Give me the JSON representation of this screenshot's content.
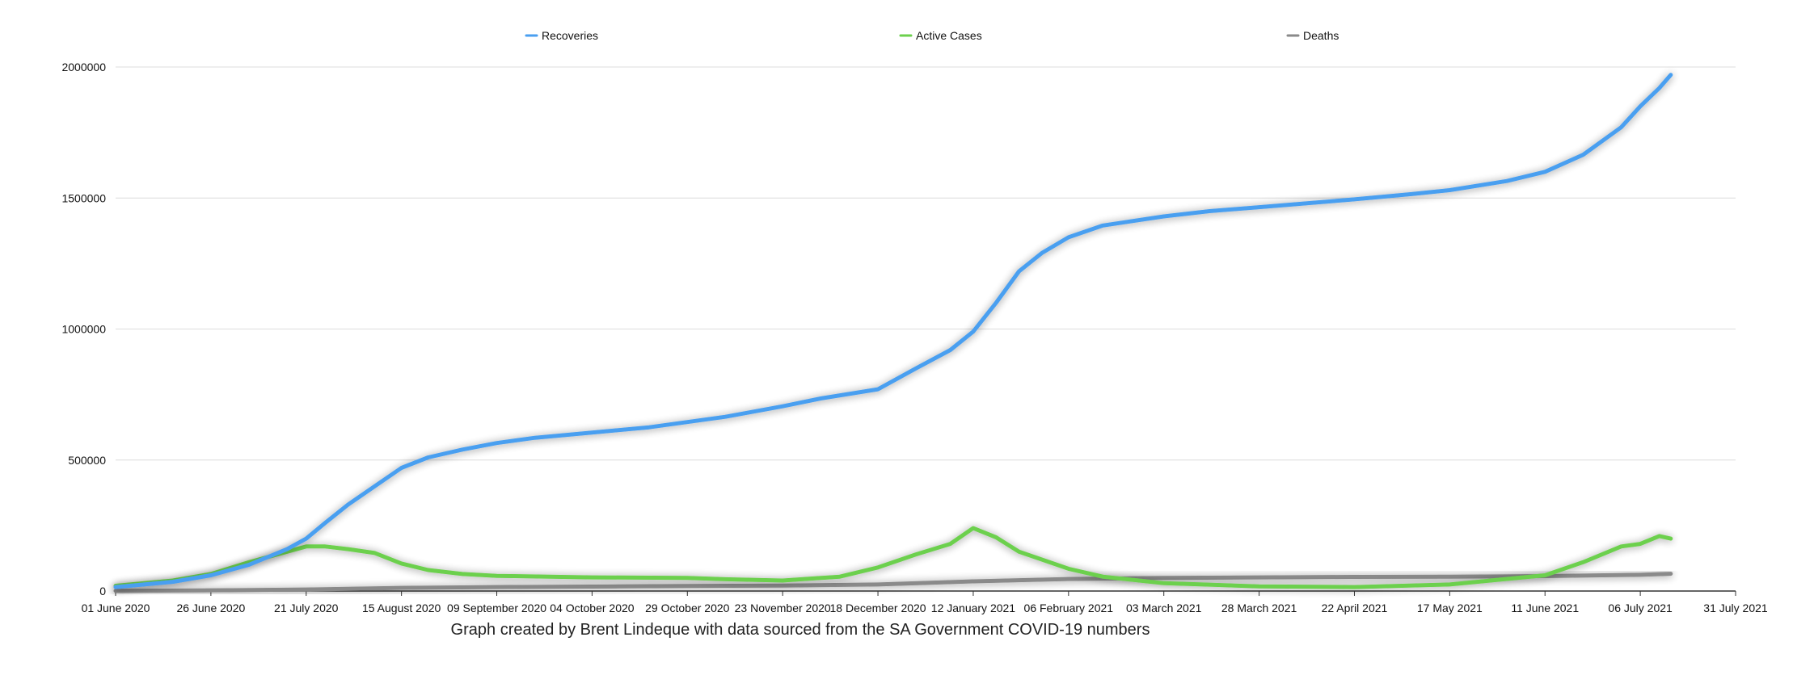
{
  "chart_data": {
    "type": "line",
    "title": "",
    "xlabel": "",
    "ylabel": "",
    "caption": "Graph created by Brent Lindeque with data sourced from the SA Government COVID-19 numbers",
    "x_range": [
      "01 June 2020",
      "31 July 2021"
    ],
    "ylim": [
      0,
      2000000
    ],
    "y_ticks": [
      "0",
      "500000",
      "1000000",
      "1500000",
      "2000000"
    ],
    "x_ticks": [
      "01 June 2020",
      "26 June 2020",
      "21 July 2020",
      "15 August 2020",
      "09 September 2020",
      "04 October 2020",
      "29 October 2020",
      "23 November 2020",
      "18 December 2020",
      "12 January 2021",
      "06 February 2021",
      "03 March 2021",
      "28 March 2021",
      "22 April 2021",
      "17 May 2021",
      "11 June 2021",
      "06 July 2021",
      "31 July 2021"
    ],
    "grid": true,
    "legend_position": "top",
    "series": [
      {
        "name": "Recoveries",
        "color": "#4a9ff0",
        "points": [
          [
            "01 June 2020",
            15000
          ],
          [
            "16 June 2020",
            35000
          ],
          [
            "26 June 2020",
            60000
          ],
          [
            "06 July 2020",
            100000
          ],
          [
            "16 July 2020",
            160000
          ],
          [
            "21 July 2020",
            200000
          ],
          [
            "26 July 2020",
            260000
          ],
          [
            "01 August 2020",
            330000
          ],
          [
            "08 August 2020",
            400000
          ],
          [
            "15 August 2020",
            470000
          ],
          [
            "22 August 2020",
            510000
          ],
          [
            "31 August 2020",
            540000
          ],
          [
            "09 September 2020",
            565000
          ],
          [
            "19 September 2020",
            585000
          ],
          [
            "04 October 2020",
            605000
          ],
          [
            "19 October 2020",
            625000
          ],
          [
            "29 October 2020",
            645000
          ],
          [
            "08 November 2020",
            665000
          ],
          [
            "23 November 2020",
            705000
          ],
          [
            "03 December 2020",
            735000
          ],
          [
            "18 December 2020",
            770000
          ],
          [
            "28 December 2020",
            850000
          ],
          [
            "06 January 2021",
            920000
          ],
          [
            "12 January 2021",
            990000
          ],
          [
            "18 January 2021",
            1100000
          ],
          [
            "24 January 2021",
            1220000
          ],
          [
            "30 January 2021",
            1290000
          ],
          [
            "06 February 2021",
            1350000
          ],
          [
            "15 February 2021",
            1395000
          ],
          [
            "03 March 2021",
            1430000
          ],
          [
            "15 March 2021",
            1450000
          ],
          [
            "28 March 2021",
            1465000
          ],
          [
            "22 April 2021",
            1495000
          ],
          [
            "07 May 2021",
            1515000
          ],
          [
            "17 May 2021",
            1530000
          ],
          [
            "01 June 2021",
            1565000
          ],
          [
            "11 June 2021",
            1600000
          ],
          [
            "21 June 2021",
            1665000
          ],
          [
            "01 July 2021",
            1770000
          ],
          [
            "06 July 2021",
            1850000
          ],
          [
            "11 July 2021",
            1920000
          ],
          [
            "14 July 2021",
            1970000
          ]
        ]
      },
      {
        "name": "Active Cases",
        "color": "#6cd04d",
        "points": [
          [
            "01 June 2020",
            20000
          ],
          [
            "16 June 2020",
            40000
          ],
          [
            "26 June 2020",
            65000
          ],
          [
            "06 July 2020",
            110000
          ],
          [
            "16 July 2020",
            150000
          ],
          [
            "21 July 2020",
            170000
          ],
          [
            "26 July 2020",
            170000
          ],
          [
            "01 August 2020",
            160000
          ],
          [
            "08 August 2020",
            145000
          ],
          [
            "15 August 2020",
            105000
          ],
          [
            "22 August 2020",
            80000
          ],
          [
            "31 August 2020",
            65000
          ],
          [
            "09 September 2020",
            58000
          ],
          [
            "04 October 2020",
            52000
          ],
          [
            "29 October 2020",
            50000
          ],
          [
            "08 November 2020",
            45000
          ],
          [
            "23 November 2020",
            40000
          ],
          [
            "08 December 2020",
            55000
          ],
          [
            "18 December 2020",
            90000
          ],
          [
            "28 December 2020",
            140000
          ],
          [
            "06 January 2021",
            180000
          ],
          [
            "12 January 2021",
            240000
          ],
          [
            "18 January 2021",
            205000
          ],
          [
            "24 January 2021",
            150000
          ],
          [
            "06 February 2021",
            85000
          ],
          [
            "15 February 2021",
            55000
          ],
          [
            "03 March 2021",
            30000
          ],
          [
            "28 March 2021",
            18000
          ],
          [
            "22 April 2021",
            15000
          ],
          [
            "17 May 2021",
            25000
          ],
          [
            "11 June 2021",
            60000
          ],
          [
            "21 June 2021",
            110000
          ],
          [
            "01 July 2021",
            170000
          ],
          [
            "06 July 2021",
            180000
          ],
          [
            "11 July 2021",
            210000
          ],
          [
            "14 July 2021",
            200000
          ]
        ]
      },
      {
        "name": "Deaths",
        "color": "#8a8a8a",
        "points": [
          [
            "01 June 2020",
            800
          ],
          [
            "01 July 2020",
            3000
          ],
          [
            "21 July 2020",
            6000
          ],
          [
            "15 August 2020",
            12000
          ],
          [
            "09 September 2020",
            15000
          ],
          [
            "04 October 2020",
            17000
          ],
          [
            "29 October 2020",
            19000
          ],
          [
            "23 November 2020",
            21000
          ],
          [
            "18 December 2020",
            25000
          ],
          [
            "12 January 2021",
            37000
          ],
          [
            "06 February 2021",
            46000
          ],
          [
            "03 March 2021",
            50000
          ],
          [
            "28 March 2021",
            52000
          ],
          [
            "22 April 2021",
            54000
          ],
          [
            "17 May 2021",
            55000
          ],
          [
            "11 June 2021",
            57000
          ],
          [
            "06 July 2021",
            62000
          ],
          [
            "14 July 2021",
            66000
          ]
        ]
      }
    ]
  }
}
